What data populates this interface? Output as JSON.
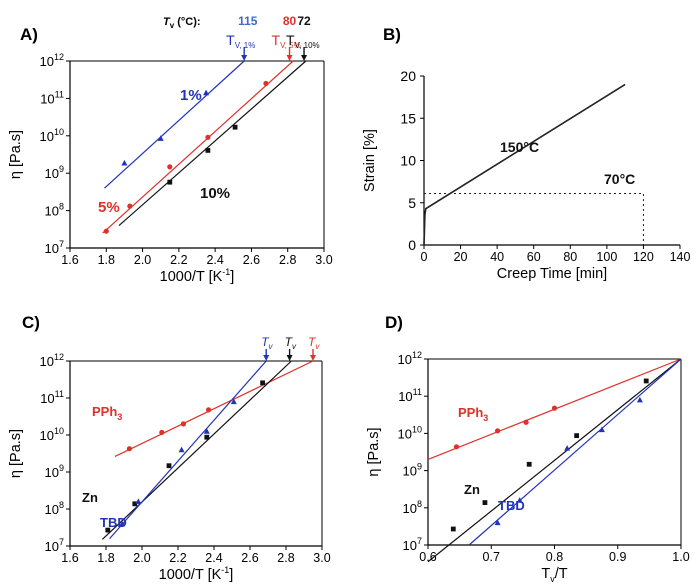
{
  "chart_data": [
    {
      "panel_label": "A)",
      "type": "scatter",
      "xlabel": "1000/T [K",
      "xlabel_sup": "-1",
      "xlabel_end": "]",
      "ylabel": "η [Pa.s]",
      "xlim": [
        1.6,
        3.0
      ],
      "ylim_log10": [
        7,
        12
      ],
      "x_ticks": [
        1.6,
        1.8,
        2.0,
        2.2,
        2.4,
        2.6,
        2.8,
        3.0
      ],
      "x_tick_labels": [
        "1.6",
        "1.8",
        "2.0",
        "2.2",
        "2.4",
        "2.6",
        "2.8",
        "3.0"
      ],
      "y_ticks_log10": [
        7,
        8,
        9,
        10,
        11,
        12
      ],
      "y_tick_labels": [
        "10",
        "10",
        "10",
        "10",
        "10",
        "10"
      ],
      "y_tick_sups": [
        "7",
        "8",
        "9",
        "10",
        "11",
        "12"
      ],
      "reference_level_log10": 12,
      "header_label": "T",
      "header_sub": "v",
      "header_unit": " (°C):",
      "header_values": [
        {
          "text": "115",
          "color": "#3d6cc4",
          "x": 2.58
        },
        {
          "text": "80",
          "color": "#e0302a",
          "x": 2.81
        },
        {
          "text": "72",
          "color": "#111111",
          "x": 2.89
        }
      ],
      "series": [
        {
          "label": "1%",
          "color": "#2233bb",
          "marker": "triangle",
          "x": [
            1.9,
            2.1,
            2.35
          ],
          "log_y": [
            9.27,
            9.93,
            11.15
          ],
          "fit": {
            "x": [
              1.79,
              2.56
            ],
            "log_y": [
              8.6,
              12.0
            ]
          },
          "tv": {
            "x": 2.56,
            "main": "T",
            "sub": "V, 1%"
          }
        },
        {
          "label": "5%",
          "color": "#e0302a",
          "marker": "circle",
          "x": [
            1.8,
            1.93,
            2.15,
            2.36,
            2.68
          ],
          "log_y": [
            7.45,
            8.12,
            9.17,
            9.96,
            11.4
          ],
          "fit": {
            "x": [
              1.78,
              2.83
            ],
            "log_y": [
              7.4,
              12.0
            ]
          },
          "tv": {
            "x": 2.81,
            "main": "T",
            "sub": "V, 5%"
          }
        },
        {
          "label": "10%",
          "color": "#111111",
          "marker": "square",
          "x": [
            2.15,
            2.36,
            2.51
          ],
          "log_y": [
            8.76,
            9.61,
            10.23
          ],
          "fit": {
            "x": [
              1.87,
              2.9
            ],
            "log_y": [
              7.6,
              12.0
            ]
          },
          "tv": {
            "x": 2.89,
            "main": "T",
            "sub": "V, 10%"
          }
        }
      ]
    },
    {
      "panel_label": "B)",
      "type": "line",
      "xlabel": "Creep Time [min]",
      "ylabel": "Strain [%]",
      "xlim": [
        0,
        140
      ],
      "ylim": [
        0,
        20
      ],
      "x_ticks": [
        0,
        20,
        40,
        60,
        80,
        100,
        120,
        140
      ],
      "x_tick_labels": [
        "0",
        "20",
        "40",
        "60",
        "80",
        "100",
        "120",
        "140"
      ],
      "y_ticks": [
        0,
        5,
        10,
        15,
        20
      ],
      "y_tick_labels": [
        "0",
        "5",
        "10",
        "15",
        "20"
      ],
      "series": [
        {
          "label": "150°C",
          "color": "#222222",
          "x": [
            0,
            0.5,
            1,
            110
          ],
          "y": [
            0,
            3.6,
            4.3,
            19
          ]
        },
        {
          "label": "70°C",
          "color": "#222222",
          "style": "dashed",
          "x": [
            0,
            120,
            120
          ],
          "y": [
            6.1,
            6.1,
            0
          ]
        }
      ]
    },
    {
      "panel_label": "C)",
      "type": "scatter",
      "xlabel": "1000/T [K",
      "xlabel_sup": "-1",
      "xlabel_end": "]",
      "ylabel": "η [Pa.s]",
      "xlim": [
        1.6,
        3.0
      ],
      "ylim_log10": [
        7,
        12
      ],
      "x_ticks": [
        1.6,
        1.8,
        2.0,
        2.2,
        2.4,
        2.6,
        2.8,
        3.0
      ],
      "x_tick_labels": [
        "1.6",
        "1.8",
        "2.0",
        "2.2",
        "2.4",
        "2.6",
        "2.8",
        "3.0"
      ],
      "y_ticks_log10": [
        7,
        8,
        9,
        10,
        11,
        12
      ],
      "y_tick_labels": [
        "10",
        "10",
        "10",
        "10",
        "10",
        "10"
      ],
      "y_tick_sups": [
        "7",
        "8",
        "9",
        "10",
        "11",
        "12"
      ],
      "reference_level_log10": 12,
      "series": [
        {
          "label": "PPh",
          "label_sub": "3",
          "color": "#e0302a",
          "marker": "circle",
          "x": [
            1.93,
            2.11,
            2.23,
            2.37
          ],
          "log_y": [
            9.63,
            10.07,
            10.3,
            10.68
          ],
          "fit": {
            "x": [
              1.85,
              2.95
            ],
            "log_y": [
              9.42,
              12.0
            ]
          },
          "tv": {
            "x": 2.95,
            "main": "T",
            "sub": "v"
          }
        },
        {
          "label": "Zn",
          "color": "#111111",
          "marker": "square",
          "x": [
            1.81,
            1.96,
            2.15,
            2.36,
            2.67
          ],
          "log_y": [
            7.43,
            8.14,
            9.17,
            9.94,
            11.41
          ],
          "fit": {
            "x": [
              1.78,
              2.83
            ],
            "log_y": [
              7.18,
              12.0
            ]
          },
          "tv": {
            "x": 2.82,
            "main": "T",
            "sub": "v"
          }
        },
        {
          "label": "TBD",
          "color": "#2233bb",
          "marker": "triangle",
          "x": [
            1.89,
            1.98,
            2.22,
            2.36,
            2.51
          ],
          "log_y": [
            7.6,
            8.2,
            9.6,
            10.1,
            10.9
          ],
          "fit": {
            "x": [
              1.82,
              2.69
            ],
            "log_y": [
              7.2,
              12.0
            ]
          },
          "tv": {
            "x": 2.69,
            "main": "T",
            "sub": "v"
          }
        }
      ]
    },
    {
      "panel_label": "D)",
      "type": "scatter",
      "xlabel": "T",
      "xlabel_sub": "v",
      "xlabel_end": "/T",
      "ylabel": "η [Pa.s]",
      "xlim": [
        0.6,
        1.0
      ],
      "ylim_log10": [
        7,
        12
      ],
      "x_ticks": [
        0.6,
        0.7,
        0.8,
        0.9,
        1.0
      ],
      "x_tick_labels": [
        "0.6",
        "0.7",
        "0.8",
        "0.9",
        "1.0"
      ],
      "y_ticks_log10": [
        7,
        8,
        9,
        10,
        11,
        12
      ],
      "y_tick_labels": [
        "10",
        "10",
        "10",
        "10",
        "10",
        "10"
      ],
      "y_tick_sups": [
        "7",
        "8",
        "9",
        "10",
        "11",
        "12"
      ],
      "series": [
        {
          "label": "PPh",
          "label_sub": "3",
          "color": "#e0302a",
          "marker": "circle",
          "x": [
            0.645,
            0.71,
            0.755,
            0.8
          ],
          "log_y": [
            9.64,
            10.07,
            10.3,
            10.68
          ],
          "fit": {
            "x": [
              0.6,
              1.0
            ],
            "log_y": [
              9.3,
              12.0
            ]
          }
        },
        {
          "label": "Zn",
          "color": "#111111",
          "marker": "square",
          "x": [
            0.64,
            0.69,
            0.76,
            0.835,
            0.945
          ],
          "log_y": [
            7.43,
            8.14,
            9.17,
            9.94,
            11.41
          ],
          "fit": {
            "x": [
              0.6,
              1.0
            ],
            "log_y": [
              6.55,
              12.0
            ]
          }
        },
        {
          "label": "TBD",
          "color": "#2233bb",
          "marker": "triangle",
          "x": [
            0.71,
            0.745,
            0.82,
            0.875,
            0.935
          ],
          "log_y": [
            7.6,
            8.2,
            9.6,
            10.1,
            10.9
          ],
          "fit": {
            "x": [
              0.665,
              1.0
            ],
            "log_y": [
              7.0,
              12.0
            ]
          }
        }
      ]
    }
  ]
}
